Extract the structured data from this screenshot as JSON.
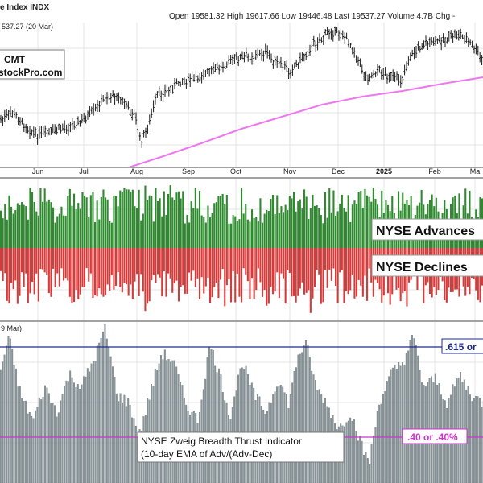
{
  "header": {
    "title": "e Index INDX",
    "quote": "Open 19581.32  High 19617.66  Low 19446.48  Last 19537.27  Volume 4.7B  Chg -"
  },
  "watermark": {
    "line1": "CMT",
    "line2": "stockPro.com"
  },
  "colors": {
    "background": "#ffffff",
    "grid": "#e4e4e4",
    "price_bar": "#1a1a1a",
    "moving_average": "#ee77ee",
    "advances": "#2f8a2f",
    "declines": "#d43c3c",
    "breadth": "#8c979c",
    "upper_line": "#1e2a8c",
    "lower_line": "#cc33cc"
  },
  "x_axis": {
    "ticks": [
      "Jun",
      "Jul",
      "Aug",
      "Sep",
      "Oct",
      "Nov",
      "Dec",
      "2025",
      "Feb",
      "Ma"
    ]
  },
  "chart_data": [
    {
      "type": "ohlc",
      "panel": "price",
      "legend": "537.27 (20 Mar)",
      "series": [
        {
          "name": "price",
          "values": "daily OHLC bars, rising from the June low into early December, pullback into January, new high in February, dip in March"
        },
        {
          "name": "moving average",
          "trend": "rising curve from the August low to the March close"
        }
      ],
      "x": [
        "Jun",
        "Jul",
        "Aug",
        "Sep",
        "Oct",
        "Nov",
        "Dec",
        "2025",
        "Feb",
        "Ma"
      ],
      "grid": true
    },
    {
      "type": "bar",
      "panel": "breadth",
      "series": [
        {
          "name": "NYSE Advances",
          "color": "#2f8a2f"
        },
        {
          "name": "NYSE Declines",
          "color": "#d43c3c"
        }
      ],
      "x": [
        "Jun",
        "Jul",
        "Aug",
        "Sep",
        "Oct",
        "Nov",
        "Dec",
        "2025",
        "Feb",
        "Ma"
      ],
      "grid": true
    },
    {
      "type": "bar",
      "panel": "indicator",
      "legend": "9 Mar)",
      "title_line1": "NYSE Zweig Breadth Thrust Indicator",
      "title_line2": "(10-day EMA of Adv/(Adv-Dec)",
      "series": [
        {
          "name": "Zweig Breadth Thrust",
          "color": "#8c979c"
        }
      ],
      "reference_lines": [
        {
          "label": ".615 or",
          "value": 0.615,
          "color": "#1e2a8c"
        },
        {
          "label": ".40 or .40%",
          "value": 0.4,
          "color": "#cc33cc"
        }
      ],
      "x": [
        "Jun",
        "Jul",
        "Aug",
        "Sep",
        "Oct",
        "Nov",
        "Dec",
        "2025",
        "Feb",
        "Ma"
      ],
      "grid": true
    }
  ]
}
